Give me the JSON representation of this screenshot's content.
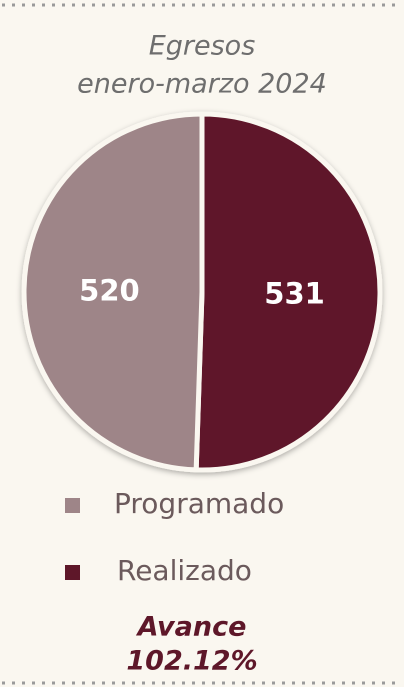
{
  "chart_data": {
    "type": "pie",
    "title": [
      "Egresos",
      "enero-marzo 2024"
    ],
    "categories": [
      "Programado",
      "Realizado"
    ],
    "values": [
      520,
      531
    ],
    "colors": [
      "#9e8588",
      "#5e1729"
    ],
    "legend": "bottom",
    "annotation": [
      "Avance",
      "102.12%"
    ]
  }
}
